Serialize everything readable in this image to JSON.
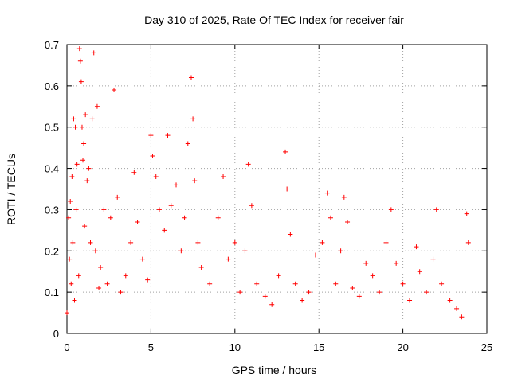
{
  "chart_data": {
    "type": "scatter",
    "title": "Day 310 of 2025, Rate Of TEC Index for receiver fair",
    "xlabel": "GPS time / hours",
    "ylabel": "ROTI / TECUs",
    "xlim": [
      0,
      25
    ],
    "ylim": [
      0,
      0.7
    ],
    "x_ticks": [
      0,
      5,
      10,
      15,
      20,
      25
    ],
    "y_ticks": [
      0,
      0.1,
      0.2,
      0.3,
      0.4,
      0.5,
      0.6,
      0.7
    ],
    "x_tick_labels": [
      "0",
      "5",
      "10",
      "15",
      "20",
      "25"
    ],
    "y_tick_labels": [
      "0",
      "0.1",
      "0.2",
      "0.3",
      "0.4",
      "0.5",
      "0.6",
      "0.7"
    ],
    "grid": true,
    "marker": "+",
    "color": "#ff0000",
    "series": [
      {
        "points": [
          [
            0.0,
            0.05
          ],
          [
            0.1,
            0.28
          ],
          [
            0.15,
            0.18
          ],
          [
            0.2,
            0.32
          ],
          [
            0.25,
            0.12
          ],
          [
            0.3,
            0.38
          ],
          [
            0.35,
            0.22
          ],
          [
            0.4,
            0.52
          ],
          [
            0.45,
            0.08
          ],
          [
            0.5,
            0.5
          ],
          [
            0.55,
            0.3
          ],
          [
            0.6,
            0.41
          ],
          [
            0.7,
            0.14
          ],
          [
            0.75,
            0.69
          ],
          [
            0.8,
            0.66
          ],
          [
            0.85,
            0.61
          ],
          [
            0.9,
            0.5
          ],
          [
            0.95,
            0.42
          ],
          [
            1.0,
            0.46
          ],
          [
            1.05,
            0.26
          ],
          [
            1.1,
            0.53
          ],
          [
            1.2,
            0.37
          ],
          [
            1.3,
            0.4
          ],
          [
            1.4,
            0.22
          ],
          [
            1.5,
            0.52
          ],
          [
            1.6,
            0.68
          ],
          [
            1.7,
            0.2
          ],
          [
            1.8,
            0.55
          ],
          [
            1.9,
            0.11
          ],
          [
            2.0,
            0.16
          ],
          [
            2.2,
            0.3
          ],
          [
            2.4,
            0.12
          ],
          [
            2.6,
            0.28
          ],
          [
            2.8,
            0.59
          ],
          [
            3.0,
            0.33
          ],
          [
            3.2,
            0.1
          ],
          [
            3.5,
            0.14
          ],
          [
            3.8,
            0.22
          ],
          [
            4.0,
            0.39
          ],
          [
            4.2,
            0.27
          ],
          [
            4.5,
            0.18
          ],
          [
            4.8,
            0.13
          ],
          [
            5.0,
            0.48
          ],
          [
            5.1,
            0.43
          ],
          [
            5.3,
            0.38
          ],
          [
            5.5,
            0.3
          ],
          [
            5.8,
            0.25
          ],
          [
            6.0,
            0.48
          ],
          [
            6.2,
            0.31
          ],
          [
            6.5,
            0.36
          ],
          [
            6.8,
            0.2
          ],
          [
            7.0,
            0.28
          ],
          [
            7.2,
            0.46
          ],
          [
            7.4,
            0.62
          ],
          [
            7.5,
            0.52
          ],
          [
            7.6,
            0.37
          ],
          [
            7.8,
            0.22
          ],
          [
            8.0,
            0.16
          ],
          [
            8.5,
            0.12
          ],
          [
            9.0,
            0.28
          ],
          [
            9.3,
            0.38
          ],
          [
            9.6,
            0.18
          ],
          [
            10.0,
            0.22
          ],
          [
            10.3,
            0.1
          ],
          [
            10.6,
            0.2
          ],
          [
            10.8,
            0.41
          ],
          [
            11.0,
            0.31
          ],
          [
            11.3,
            0.12
          ],
          [
            11.8,
            0.09
          ],
          [
            12.2,
            0.07
          ],
          [
            12.6,
            0.14
          ],
          [
            13.0,
            0.44
          ],
          [
            13.1,
            0.35
          ],
          [
            13.3,
            0.24
          ],
          [
            13.6,
            0.12
          ],
          [
            14.0,
            0.08
          ],
          [
            14.4,
            0.1
          ],
          [
            14.8,
            0.19
          ],
          [
            15.2,
            0.22
          ],
          [
            15.5,
            0.34
          ],
          [
            15.7,
            0.28
          ],
          [
            16.0,
            0.12
          ],
          [
            16.3,
            0.2
          ],
          [
            16.5,
            0.33
          ],
          [
            16.7,
            0.27
          ],
          [
            17.0,
            0.11
          ],
          [
            17.4,
            0.09
          ],
          [
            17.8,
            0.17
          ],
          [
            18.2,
            0.14
          ],
          [
            18.6,
            0.1
          ],
          [
            19.0,
            0.22
          ],
          [
            19.3,
            0.3
          ],
          [
            19.6,
            0.17
          ],
          [
            20.0,
            0.12
          ],
          [
            20.4,
            0.08
          ],
          [
            20.8,
            0.21
          ],
          [
            21.0,
            0.15
          ],
          [
            21.4,
            0.1
          ],
          [
            21.8,
            0.18
          ],
          [
            22.0,
            0.3
          ],
          [
            22.3,
            0.12
          ],
          [
            22.8,
            0.08
          ],
          [
            23.2,
            0.06
          ],
          [
            23.5,
            0.04
          ],
          [
            23.8,
            0.29
          ],
          [
            23.9,
            0.22
          ]
        ]
      }
    ]
  }
}
